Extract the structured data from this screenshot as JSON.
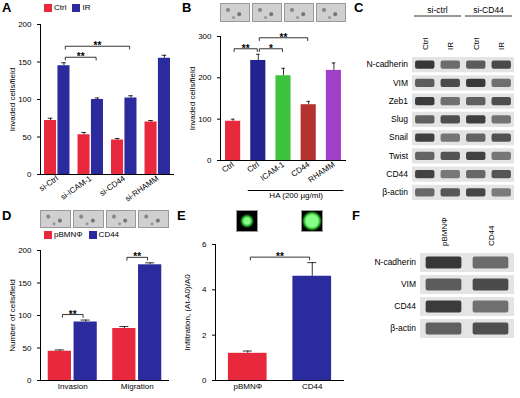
{
  "chart_data": [
    {
      "panel": "A",
      "type": "bar",
      "categories": [
        "si-Ctrl",
        "si-ICAM-1",
        "si-CD44",
        "si-RHAMM"
      ],
      "y_label": "Invaded cells/field",
      "series": [
        {
          "name": "Ctrl",
          "color": "#e8283c",
          "values": [
            72,
            53,
            46,
            70
          ],
          "errors": [
            3,
            3,
            2,
            2
          ]
        },
        {
          "name": "IR",
          "color": "#2b2b9e",
          "values": [
            145,
            100,
            102,
            155
          ],
          "errors": [
            4,
            2,
            3,
            4
          ]
        }
      ],
      "ylim": [
        0,
        200
      ],
      "yticks": [
        0,
        50,
        100,
        150,
        200
      ],
      "legend": "top-left",
      "significance": [
        {
          "from": {
            "category": 0,
            "series": "IR"
          },
          "to": {
            "category": 1,
            "series": "IR"
          },
          "label": "**"
        },
        {
          "from": {
            "category": 0,
            "series": "IR"
          },
          "to": {
            "category": 2,
            "series": "IR"
          },
          "label": "**"
        }
      ]
    },
    {
      "panel": "B",
      "type": "bar",
      "categories": [
        "Ctrl",
        "Ctrl",
        "ICAM-1",
        "CD44",
        "RHAMM"
      ],
      "group": [
        null,
        "HA (200 µg/ml)",
        "HA (200 µg/ml)",
        "HA (200 µg/ml)",
        "HA (200 µg/ml)"
      ],
      "y_label": "Invaded cells/field",
      "values": [
        95,
        242,
        205,
        135,
        218
      ],
      "errors": [
        5,
        15,
        18,
        8,
        18
      ],
      "colors": [
        "#e8283c",
        "#23238f",
        "#3fc33f",
        "#b5332e",
        "#a040c8"
      ],
      "ylim": [
        0,
        300
      ],
      "yticks": [
        0,
        100,
        200,
        300
      ],
      "significance": [
        {
          "from": {
            "category": 0
          },
          "to": {
            "category": 1
          },
          "label": "**"
        },
        {
          "from": {
            "category": 1
          },
          "to": {
            "category": 2
          },
          "label": "*"
        },
        {
          "from": {
            "category": 1
          },
          "to": {
            "category": 3
          },
          "label": "**"
        }
      ]
    },
    {
      "panel": "C",
      "type": "blot",
      "column_groups": [
        {
          "label": "si-ctrl",
          "columns": [
            "Ctrl",
            "IR"
          ]
        },
        {
          "label": "si-CD44",
          "columns": [
            "Ctrl",
            "IR"
          ]
        }
      ],
      "rows": [
        "N-cadherin",
        "VIM",
        "Zeb1",
        "Slug",
        "Snail",
        "Twist",
        "CD44",
        "β-actin"
      ]
    },
    {
      "panel": "D",
      "type": "bar",
      "categories": [
        "Invasion",
        "Migration"
      ],
      "y_label": "Number of cells/field",
      "series": [
        {
          "name": "pBMNΦ",
          "color": "#e8283c",
          "values": [
            45,
            80
          ],
          "errors": [
            2,
            3
          ]
        },
        {
          "name": "CD44",
          "color": "#2b2b9e",
          "values": [
            90,
            178
          ],
          "errors": [
            3,
            3
          ]
        }
      ],
      "ylim": [
        0,
        200
      ],
      "yticks": [
        0,
        50,
        100,
        150,
        200
      ],
      "legend": "top-left",
      "significance": [
        {
          "from": {
            "category": 0,
            "series": "pBMNΦ"
          },
          "to": {
            "category": 0,
            "series": "CD44"
          },
          "label": "**"
        },
        {
          "from": {
            "category": 1,
            "series": "pBMNΦ"
          },
          "to": {
            "category": 1,
            "series": "CD44"
          },
          "label": "**"
        }
      ]
    },
    {
      "panel": "E",
      "type": "bar",
      "categories": [
        "pBMNΦ",
        "CD44"
      ],
      "y_label": "Infiltration, (At-A0)/A0",
      "values": [
        1.2,
        4.6
      ],
      "errors": [
        0.1,
        0.6
      ],
      "colors": [
        "#e8283c",
        "#2b2b9e"
      ],
      "ylim": [
        0,
        6
      ],
      "yticks": [
        0,
        2,
        4,
        6
      ],
      "significance": [
        {
          "from": {
            "category": 0
          },
          "to": {
            "category": 1
          },
          "label": "**"
        }
      ]
    },
    {
      "panel": "F",
      "type": "blot",
      "columns": [
        "pBMNΦ",
        "CD44"
      ],
      "rows": [
        "N-cadherin",
        "VIM",
        "CD44",
        "β-actin"
      ]
    }
  ]
}
